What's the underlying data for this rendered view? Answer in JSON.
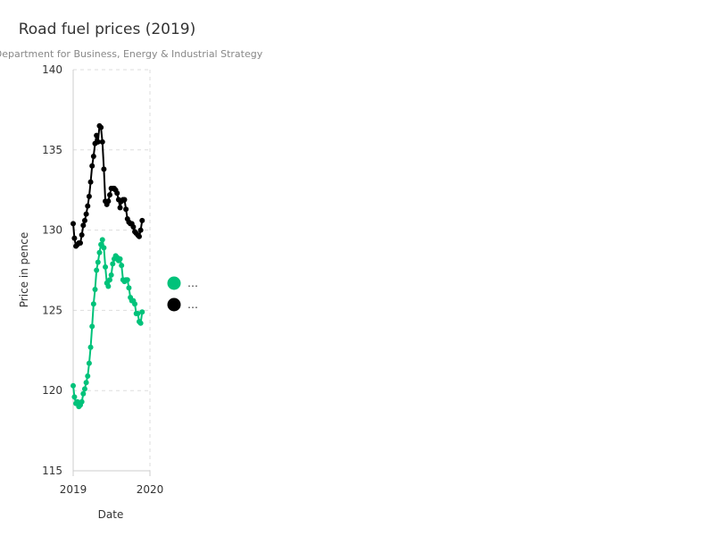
{
  "chart_data": {
    "type": "line",
    "title": "Road fuel prices (2019)",
    "subtitle": "Department for Business, Energy & Industrial Strategy",
    "xlabel": "Date",
    "ylabel": "Price in pence",
    "ylim": [
      115,
      140
    ],
    "yticks": [
      "115",
      "120",
      "125",
      "130",
      "135",
      "140"
    ],
    "xticks": [
      "2019",
      "2020"
    ],
    "xlim": [
      "2019-01-01",
      "2020-01-01"
    ],
    "grid": true,
    "legend_position": "right",
    "series": [
      {
        "name": "…",
        "color": "#00c27a",
        "points": [
          [
            "2019-01-01",
            120.3
          ],
          [
            "2019-01-07",
            119.6
          ],
          [
            "2019-01-14",
            119.2
          ],
          [
            "2019-01-21",
            119.3
          ],
          [
            "2019-01-28",
            119.0
          ],
          [
            "2019-02-04",
            119.1
          ],
          [
            "2019-02-11",
            119.3
          ],
          [
            "2019-02-18",
            119.8
          ],
          [
            "2019-02-25",
            120.1
          ],
          [
            "2019-03-04",
            120.5
          ],
          [
            "2019-03-11",
            120.9
          ],
          [
            "2019-03-18",
            121.7
          ],
          [
            "2019-03-25",
            122.7
          ],
          [
            "2019-04-01",
            124.0
          ],
          [
            "2019-04-08",
            125.4
          ],
          [
            "2019-04-15",
            126.3
          ],
          [
            "2019-04-22",
            127.5
          ],
          [
            "2019-04-29",
            128.0
          ],
          [
            "2019-05-06",
            128.6
          ],
          [
            "2019-05-13",
            129.1
          ],
          [
            "2019-05-20",
            129.4
          ],
          [
            "2019-05-27",
            128.9
          ],
          [
            "2019-06-03",
            127.7
          ],
          [
            "2019-06-10",
            126.7
          ],
          [
            "2019-06-17",
            126.5
          ],
          [
            "2019-06-24",
            126.9
          ],
          [
            "2019-07-01",
            127.2
          ],
          [
            "2019-07-08",
            127.9
          ],
          [
            "2019-07-15",
            128.2
          ],
          [
            "2019-07-22",
            128.4
          ],
          [
            "2019-07-29",
            128.3
          ],
          [
            "2019-08-05",
            128.1
          ],
          [
            "2019-08-12",
            128.2
          ],
          [
            "2019-08-19",
            127.8
          ],
          [
            "2019-08-26",
            126.9
          ],
          [
            "2019-09-02",
            126.8
          ],
          [
            "2019-09-09",
            126.9
          ],
          [
            "2019-09-16",
            126.9
          ],
          [
            "2019-09-23",
            126.4
          ],
          [
            "2019-09-30",
            125.8
          ],
          [
            "2019-10-07",
            125.6
          ],
          [
            "2019-10-14",
            125.6
          ],
          [
            "2019-10-21",
            125.4
          ],
          [
            "2019-10-28",
            124.8
          ],
          [
            "2019-11-04",
            124.8
          ],
          [
            "2019-11-11",
            124.3
          ],
          [
            "2019-11-18",
            124.2
          ],
          [
            "2019-11-25",
            124.9
          ]
        ]
      },
      {
        "name": "…",
        "color": "#000000",
        "points": [
          [
            "2019-01-01",
            130.4
          ],
          [
            "2019-01-07",
            129.5
          ],
          [
            "2019-01-14",
            129.0
          ],
          [
            "2019-01-21",
            129.1
          ],
          [
            "2019-01-28",
            129.2
          ],
          [
            "2019-02-04",
            129.2
          ],
          [
            "2019-02-11",
            129.7
          ],
          [
            "2019-02-18",
            130.3
          ],
          [
            "2019-02-25",
            130.6
          ],
          [
            "2019-03-04",
            131.0
          ],
          [
            "2019-03-11",
            131.5
          ],
          [
            "2019-03-18",
            132.1
          ],
          [
            "2019-03-25",
            133.0
          ],
          [
            "2019-04-01",
            134.0
          ],
          [
            "2019-04-08",
            134.6
          ],
          [
            "2019-04-15",
            135.4
          ],
          [
            "2019-04-22",
            135.9
          ],
          [
            "2019-04-29",
            135.5
          ],
          [
            "2019-05-06",
            136.5
          ],
          [
            "2019-05-13",
            136.4
          ],
          [
            "2019-05-20",
            135.5
          ],
          [
            "2019-05-27",
            133.8
          ],
          [
            "2019-06-03",
            131.8
          ],
          [
            "2019-06-10",
            131.6
          ],
          [
            "2019-06-17",
            131.8
          ],
          [
            "2019-06-24",
            132.2
          ],
          [
            "2019-07-01",
            132.6
          ],
          [
            "2019-07-08",
            132.6
          ],
          [
            "2019-07-15",
            132.6
          ],
          [
            "2019-07-22",
            132.5
          ],
          [
            "2019-07-29",
            132.3
          ],
          [
            "2019-08-05",
            131.9
          ],
          [
            "2019-08-12",
            131.4
          ],
          [
            "2019-08-19",
            131.8
          ],
          [
            "2019-08-26",
            131.9
          ],
          [
            "2019-09-02",
            131.9
          ],
          [
            "2019-09-09",
            131.3
          ],
          [
            "2019-09-16",
            130.7
          ],
          [
            "2019-09-23",
            130.5
          ],
          [
            "2019-09-30",
            130.4
          ],
          [
            "2019-10-07",
            130.4
          ],
          [
            "2019-10-14",
            130.2
          ],
          [
            "2019-10-21",
            129.9
          ],
          [
            "2019-10-28",
            129.8
          ],
          [
            "2019-11-04",
            129.7
          ],
          [
            "2019-11-11",
            129.6
          ],
          [
            "2019-11-18",
            130.0
          ],
          [
            "2019-11-25",
            130.6
          ]
        ]
      }
    ]
  }
}
